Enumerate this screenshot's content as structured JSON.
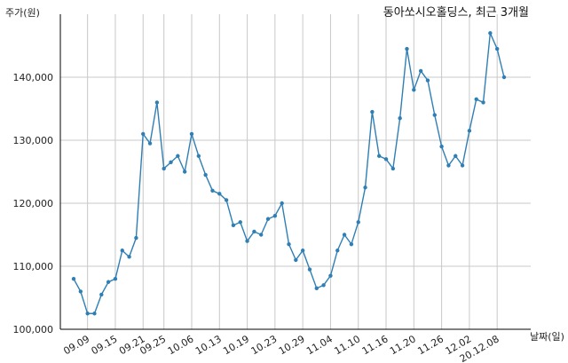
{
  "chart_data": {
    "type": "line",
    "title": "동아쏘시오홀딩스, 최근 3개월",
    "ylabel": "주가(원)",
    "xlabel": "날짜(일)",
    "ylim": [
      100000,
      150000
    ],
    "yticks": [
      100000,
      110000,
      120000,
      130000,
      140000
    ],
    "ytick_labels": [
      "100,000",
      "110,000",
      "120,000",
      "130,000",
      "140,000"
    ],
    "xtick_labels": [
      "09.09",
      "09.15",
      "09.21",
      "09.25",
      "10.06",
      "10.13",
      "10.19",
      "10.23",
      "10.29",
      "11.04",
      "11.10",
      "11.16",
      "11.20",
      "11.26",
      "12.02",
      "20.12.08"
    ],
    "xtick_index": [
      2,
      6,
      10,
      13,
      17,
      21,
      25,
      29,
      33,
      37,
      41,
      45,
      49,
      53,
      57,
      61
    ],
    "grid": true,
    "series": [
      {
        "color": "#2f7fb5",
        "values": [
          108000,
          106000,
          102500,
          102500,
          105500,
          107500,
          108000,
          112500,
          111500,
          114500,
          131000,
          129500,
          136000,
          125500,
          126500,
          127500,
          125000,
          131000,
          127500,
          124500,
          122000,
          121500,
          120500,
          116500,
          117000,
          114000,
          115500,
          115000,
          117500,
          118000,
          120000,
          113500,
          111000,
          112500,
          109500,
          106500,
          107000,
          108500,
          112500,
          115000,
          113500,
          117000,
          122500,
          134500,
          127500,
          127000,
          125500,
          133500,
          144500,
          138000,
          141000,
          139500,
          134000,
          129000,
          126000,
          127500,
          126000,
          131500,
          136500,
          136000,
          147000,
          144500,
          140000
        ]
      }
    ]
  }
}
